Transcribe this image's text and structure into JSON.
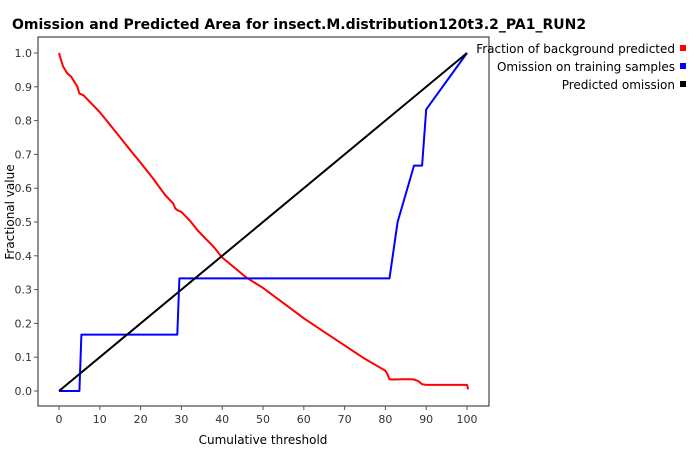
{
  "chart_data": {
    "type": "line",
    "title": "Omission and Predicted Area for insect.M.distribution120t3.2_PA1_RUN2",
    "xlabel": "Cumulative threshold",
    "ylabel": "Fractional value",
    "xlim": [
      0,
      100
    ],
    "ylim": [
      0,
      1
    ],
    "xticks": [
      "0",
      "10",
      "20",
      "30",
      "40",
      "50",
      "60",
      "70",
      "80",
      "90",
      "100"
    ],
    "yticks": [
      "0.0",
      "0.1",
      "0.2",
      "0.3",
      "0.4",
      "0.5",
      "0.6",
      "0.7",
      "0.8",
      "0.9",
      "1.0"
    ],
    "xtick_values": [
      0,
      10,
      20,
      30,
      40,
      50,
      60,
      70,
      80,
      90,
      100
    ],
    "ytick_values": [
      0,
      0.1,
      0.2,
      0.3,
      0.4,
      0.5,
      0.6,
      0.7,
      0.8,
      0.9,
      1.0
    ],
    "grid": false,
    "legend_position": "top-right",
    "series": [
      {
        "name": "Fraction of background predicted",
        "color": "#ff0000",
        "x": [
          0,
          0.5,
          1,
          2,
          3,
          4,
          4.5,
          5,
          6,
          8,
          10,
          12,
          15,
          18,
          20,
          23,
          26,
          28,
          28.5,
          29,
          30,
          32,
          34,
          36,
          38,
          40,
          43,
          46,
          50,
          55,
          60,
          65,
          70,
          75,
          80,
          80.5,
          81,
          82,
          84,
          86,
          87,
          88,
          89,
          90,
          92,
          95,
          98,
          100,
          100.3
        ],
        "y": [
          1.0,
          0.98,
          0.96,
          0.94,
          0.93,
          0.91,
          0.9,
          0.88,
          0.875,
          0.85,
          0.825,
          0.795,
          0.75,
          0.705,
          0.675,
          0.63,
          0.58,
          0.555,
          0.54,
          0.535,
          0.53,
          0.505,
          0.475,
          0.45,
          0.425,
          0.395,
          0.365,
          0.335,
          0.305,
          0.26,
          0.215,
          0.175,
          0.135,
          0.095,
          0.06,
          0.05,
          0.035,
          0.034,
          0.035,
          0.035,
          0.034,
          0.03,
          0.02,
          0.018,
          0.018,
          0.018,
          0.018,
          0.018,
          0.005
        ]
      },
      {
        "name": "Omission on training samples",
        "color": "#0000ff",
        "x": [
          0,
          5,
          5.5,
          10,
          20,
          29,
          29.5,
          30,
          40,
          50,
          60,
          70,
          80,
          81,
          83,
          85,
          87,
          88,
          89,
          90,
          100
        ],
        "y": [
          0,
          0,
          0.167,
          0.167,
          0.167,
          0.167,
          0.333,
          0.333,
          0.333,
          0.333,
          0.333,
          0.333,
          0.333,
          0.333,
          0.5,
          0.583,
          0.667,
          0.667,
          0.667,
          0.833,
          1.0
        ]
      },
      {
        "name": "Predicted omission",
        "color": "#000000",
        "x": [
          0,
          100
        ],
        "y": [
          0,
          1
        ]
      }
    ]
  }
}
